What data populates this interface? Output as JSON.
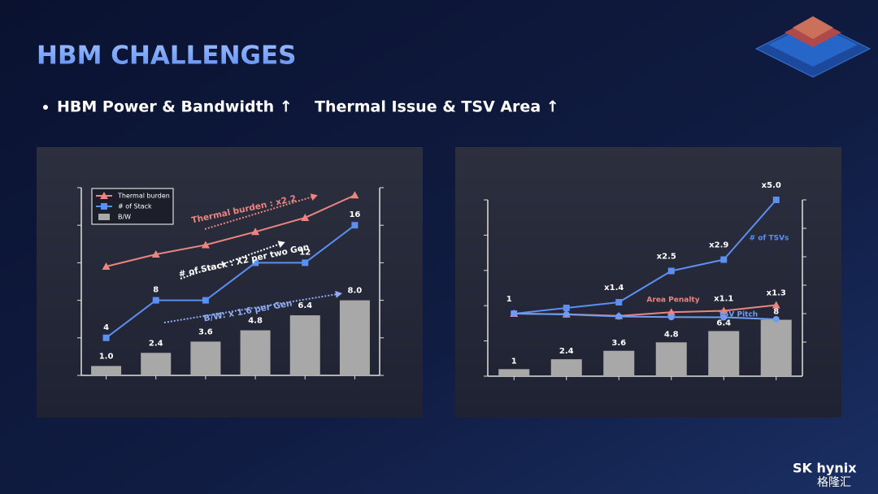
{
  "header": {
    "title": "HBM CHALLENGES",
    "bullets": [
      "HBM Power & Bandwidth ↑",
      "Thermal Issue & TSV Area ↑"
    ]
  },
  "logo": {
    "brand": "SK hynix",
    "watermark": "格隆汇"
  },
  "chart_data": [
    {
      "type": "combo",
      "categories": [
        null,
        null,
        null,
        null,
        null,
        null
      ],
      "ylim": [
        0,
        20
      ],
      "yticks": [
        0,
        4,
        8,
        12,
        16,
        20
      ],
      "legend": true,
      "legend_corner": "upper left",
      "series": [
        {
          "name": "Thermal burden",
          "kind": "line",
          "marker": "triangle",
          "color": "#ec8580",
          "values": [
            11.6,
            12.9,
            13.9,
            15.3,
            16.8,
            19.2
          ]
        },
        {
          "name": "# of Stack",
          "kind": "line",
          "marker": "square",
          "color": "#5b8ff0",
          "values": [
            4,
            8,
            8,
            12,
            12,
            16
          ],
          "value_labels": [
            "4",
            "8",
            null,
            null,
            "12",
            "16"
          ]
        },
        {
          "name": "B/W",
          "kind": "bar",
          "color": "#a8a8a8",
          "values": [
            1,
            2.4,
            3.6,
            4.8,
            6.4,
            8
          ],
          "value_labels": [
            "1.0",
            "2.4",
            "3.6",
            "4.8",
            "6.4",
            "8.0"
          ]
        }
      ],
      "annotations": [
        {
          "text": "Thermal burden : x2.2",
          "color": "#ec8580"
        },
        {
          "text": "# of Stack : X2 per two Gen",
          "color": "#ffffff"
        },
        {
          "text": "B/W: x 1.6 per Gen",
          "color": "#8fabf2"
        }
      ]
    },
    {
      "type": "combo",
      "categories": [
        null,
        null,
        null,
        null,
        null,
        null
      ],
      "ylim": [
        0,
        25
      ],
      "yticks": [
        0,
        5,
        10,
        15,
        20,
        25
      ],
      "y2lim": [
        -1.2,
        5
      ],
      "y2ticks": [
        0,
        1,
        2,
        3,
        4,
        5
      ],
      "series": [
        {
          "kind": "bar",
          "color": "#a8a8a8",
          "values": [
            1,
            2.4,
            3.6,
            4.8,
            6.4,
            8
          ]
        },
        {
          "name": "# of TSVs",
          "kind": "line",
          "marker": "square",
          "color": "#5b8ff0",
          "axis": "y2",
          "values": [
            1,
            1.2,
            1.4,
            2.5,
            2.9,
            5.0
          ],
          "value_labels": [
            "1",
            null,
            "x1.4",
            "x2.5",
            "x2.9",
            "x5.0"
          ]
        },
        {
          "name": "Area Penalty",
          "kind": "line",
          "marker": "triangle",
          "color": "#ec8580",
          "axis": "y2",
          "values": [
            1,
            0.98,
            0.92,
            1.05,
            1.1,
            1.3
          ],
          "value_labels": [
            null,
            null,
            null,
            null,
            "x1.1",
            "x1.3"
          ]
        },
        {
          "name": "TSV Pitch",
          "kind": "line",
          "marker": "circle",
          "color": "#6f9cf3",
          "axis": "y2",
          "values": [
            1,
            0.97,
            0.9,
            0.88,
            0.87,
            0.8
          ]
        }
      ]
    }
  ]
}
